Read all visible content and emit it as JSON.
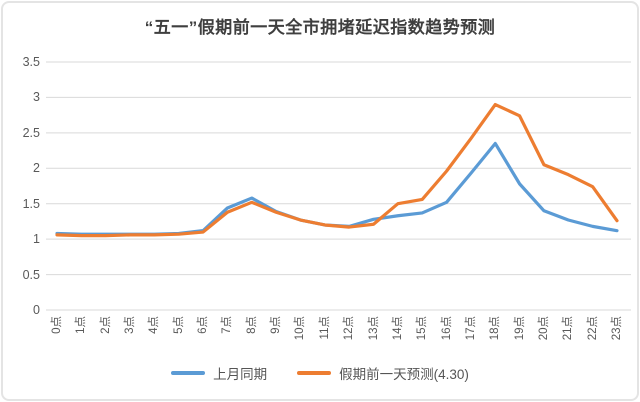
{
  "chart_data": {
    "type": "line",
    "title": "“五一”假期前一天全市拥堵延迟指数趋势预测",
    "categories": [
      "0点",
      "1点",
      "2点",
      "3点",
      "4点",
      "5点",
      "6点",
      "7点",
      "8点",
      "9点",
      "10点",
      "11点",
      "12点",
      "13点",
      "14点",
      "15点",
      "16点",
      "17点",
      "18点",
      "19点",
      "20点",
      "21点",
      "22点",
      "23点"
    ],
    "series": [
      {
        "name": "上月同期",
        "color": "#5B9BD5",
        "values": [
          1.08,
          1.07,
          1.07,
          1.07,
          1.07,
          1.08,
          1.12,
          1.44,
          1.58,
          1.39,
          1.27,
          1.2,
          1.18,
          1.28,
          1.33,
          1.37,
          1.52,
          1.93,
          2.35,
          1.78,
          1.4,
          1.27,
          1.18,
          1.12
        ]
      },
      {
        "name": "假期前一天预测(4.30)",
        "color": "#ED7D31",
        "values": [
          1.06,
          1.05,
          1.05,
          1.06,
          1.06,
          1.07,
          1.1,
          1.38,
          1.52,
          1.38,
          1.27,
          1.2,
          1.17,
          1.21,
          1.5,
          1.56,
          1.96,
          2.42,
          2.9,
          2.74,
          2.05,
          1.91,
          1.74,
          1.26
        ]
      }
    ],
    "xlabel": "",
    "ylabel": "",
    "ylim": [
      0,
      3.5
    ],
    "yticks": [
      0,
      0.5,
      1,
      1.5,
      2,
      2.5,
      3,
      3.5
    ],
    "ytick_labels": [
      "0",
      "0.5",
      "1",
      "1.5",
      "2",
      "2.5",
      "3",
      "3.5"
    ],
    "grid": true,
    "legend_position": "bottom",
    "gridline_color": "#D9D9D9",
    "tick_text_color": "#595959"
  }
}
